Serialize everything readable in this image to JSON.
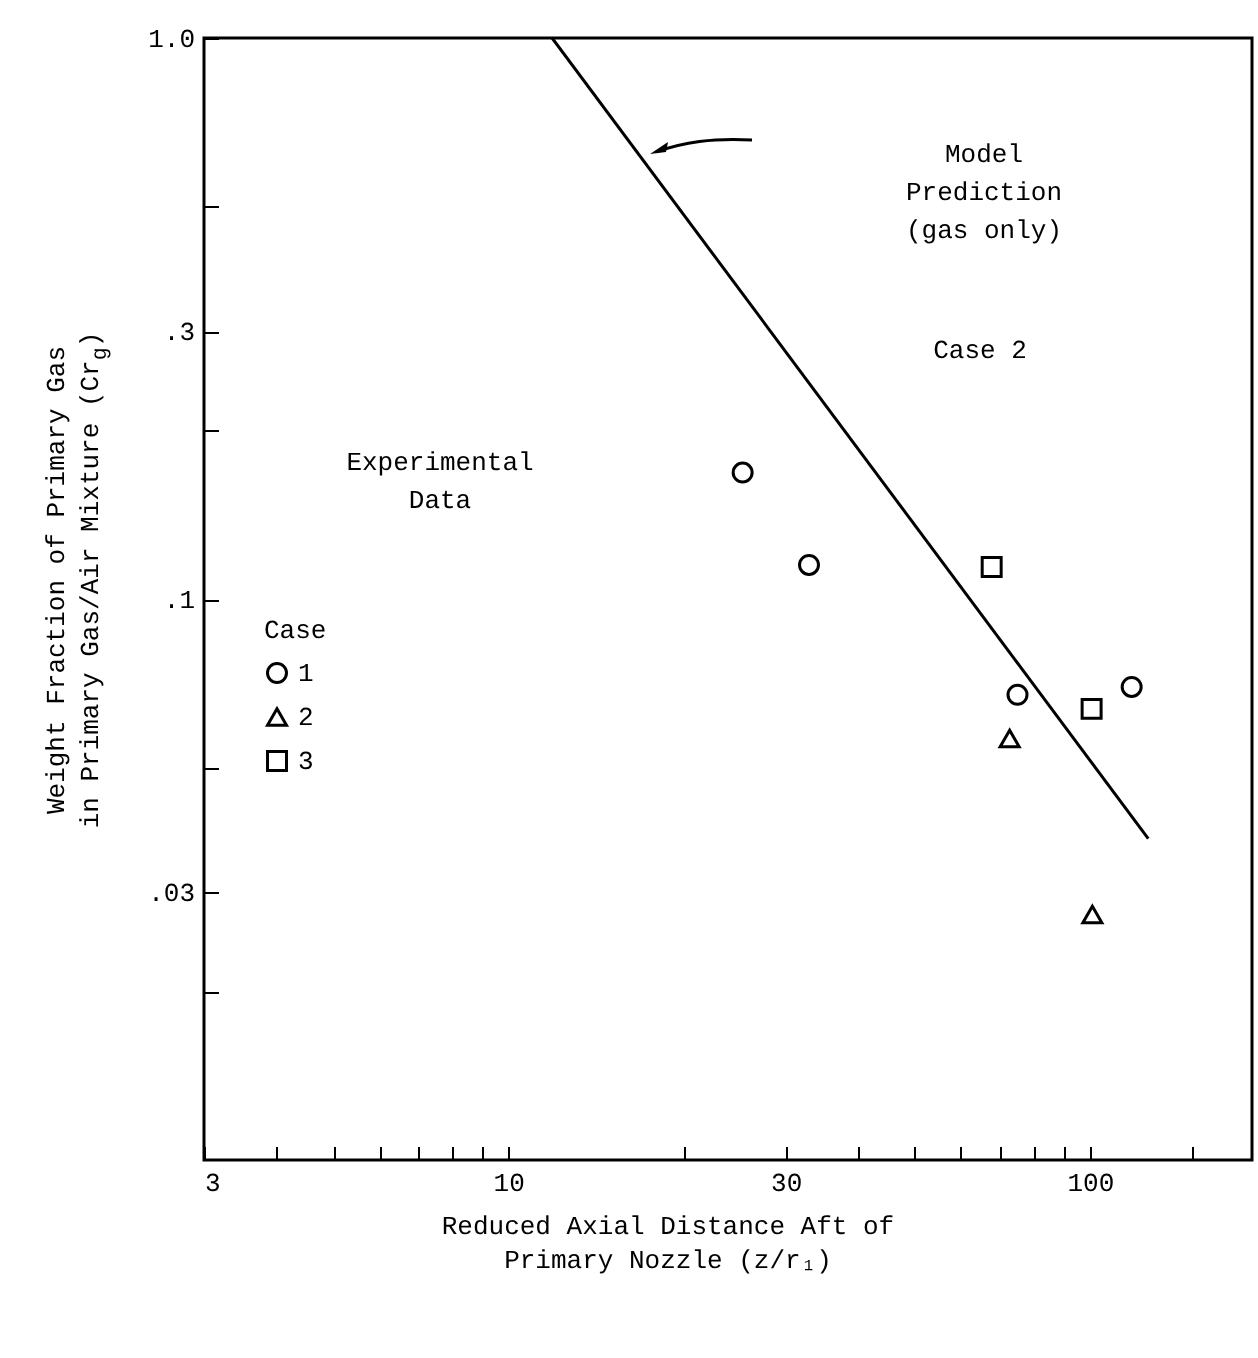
{
  "chart_data": {
    "type": "scatter",
    "xlabel": "Reduced Axial Distance Aft of\nPrimary Nozzle (z/r₁)",
    "ylabel": "Weight Fraction of Primary Gas\nin Primary Gas/Air Mixture (Cr$_{g}$)",
    "legend_title": "Case",
    "legend": "left",
    "log": "xy",
    "xlim": [
      3,
      190
    ],
    "ylim": [
      0.01,
      1
    ],
    "xticks": [
      3,
      {
        "value": 4,
        "label": null
      },
      {
        "value": 5,
        "label": null
      },
      {
        "value": 6,
        "label": null
      },
      {
        "value": 7,
        "label": null
      },
      {
        "value": 8,
        "label": null
      },
      {
        "value": 9,
        "label": null
      },
      10,
      {
        "value": 20,
        "label": null
      },
      30,
      {
        "value": 40,
        "label": null
      },
      {
        "value": 50,
        "label": null
      },
      {
        "value": 60,
        "label": null
      },
      {
        "value": 70,
        "label": null
      },
      {
        "value": 80,
        "label": null
      },
      {
        "value": 90,
        "label": null
      },
      100,
      {
        "value": 150,
        "label": null
      }
    ],
    "yticks": [
      {
        "value": 1,
        "label": "1.0"
      },
      {
        "value": 0.5,
        "label": null
      },
      {
        "value": 0.3,
        "label": ".3"
      },
      {
        "value": 0.2,
        "label": null
      },
      {
        "value": 0.1,
        "label": ".1"
      },
      {
        "value": 0.05,
        "label": null
      },
      {
        "value": 0.03,
        "label": ".03"
      },
      {
        "value": 0.02,
        "label": null
      }
    ],
    "grid": false,
    "annotations": [
      "Model\nPrediction\n(gas only)",
      "Case 2",
      "Experimental\nData"
    ],
    "series": [
      {
        "name": "1",
        "marker": "circle",
        "color": "#000000",
        "x": [
          25.3,
          32.9,
          75.1,
          118
        ],
        "values": [
          0.168,
          0.115,
          0.0675,
          0.0697
        ]
      },
      {
        "name": "2",
        "marker": "triangle",
        "color": "#000000",
        "x": [
          72.8,
          101
        ],
        "values": [
          0.0564,
          0.0274
        ]
      },
      {
        "name": "3",
        "marker": "square",
        "color": "#000000",
        "x": [
          67.8,
          100.7
        ],
        "values": [
          0.114,
          0.0637
        ]
      },
      {
        "type": "line",
        "color": "#000000",
        "line_style": "solid",
        "x": [
          11.9,
          126
        ],
        "values": [
          1.0,
          0.0374
        ]
      }
    ]
  }
}
